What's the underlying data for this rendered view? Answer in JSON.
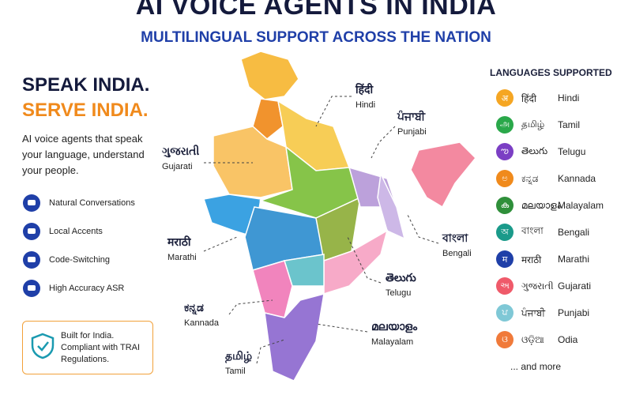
{
  "header": {
    "title": "AI VOICE AGENTS IN INDIA",
    "subtitle": "MULTILINGUAL SUPPORT ACROSS THE NATION"
  },
  "left": {
    "headline": [
      "SPEAK INDIA.",
      "SERVE INDIA."
    ],
    "description": "AI voice agents that speak your language, understand your people.",
    "features": [
      "Natural Conversations",
      "Local Accents",
      "Code-Switching",
      "High Accuracy ASR"
    ],
    "badge": "Built for India. Compliant with TRAI Regulations."
  },
  "map_labels": [
    {
      "native": "हिंदी",
      "name": "Hindi"
    },
    {
      "native": "ਪੰਜਾਬੀ",
      "name": "Punjabi"
    },
    {
      "native": "ગુજરાતી",
      "name": "Gujarati"
    },
    {
      "native": "मराठी",
      "name": "Marathi"
    },
    {
      "native": "ಕನ್ನಡ",
      "name": "Kannada"
    },
    {
      "native": "தமிழ்",
      "name": "Tamil"
    },
    {
      "native": "മലയാളം",
      "name": "Malayalam"
    },
    {
      "native": "తెలుగు",
      "name": "Telugu"
    },
    {
      "native": "বাংলা",
      "name": "Bengali"
    }
  ],
  "languages": {
    "title": "LANGUAGES SUPPORTED",
    "items": [
      {
        "icon": "अ",
        "native": "हिंदी",
        "name": "Hindi"
      },
      {
        "icon": "அ",
        "native": "தமிழ்",
        "name": "Tamil"
      },
      {
        "icon": "ఌ",
        "native": "తెలుగు",
        "name": "Telugu"
      },
      {
        "icon": "ಅ",
        "native": "ಕನ್ನಡ",
        "name": "Kannada"
      },
      {
        "icon": "ക",
        "native": "മലയാളം",
        "name": "Malayalam"
      },
      {
        "icon": "অ",
        "native": "বাংলা",
        "name": "Bengali"
      },
      {
        "icon": "म",
        "native": "मराठी",
        "name": "Marathi"
      },
      {
        "icon": "અ",
        "native": "ગુજરાતી",
        "name": "Gujarati"
      },
      {
        "icon": "ਪ",
        "native": "ਪੰਜਾਬੀ",
        "name": "Punjabi"
      },
      {
        "icon": "ଓ",
        "native": "ଓଡ଼ିଆ",
        "name": "Odia"
      }
    ],
    "more": "... and more"
  }
}
